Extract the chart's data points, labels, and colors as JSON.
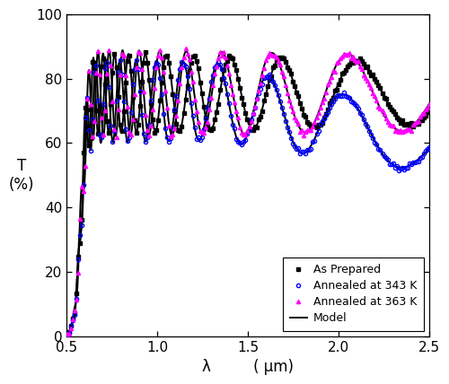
{
  "xlabel_lambda": "λ",
  "xlabel_unit": "( μm)",
  "ylabel_T": "T",
  "ylabel_pct": "(%)",
  "xlim": [
    0.5,
    2.5
  ],
  "ylim": [
    0,
    100
  ],
  "xticks": [
    0.5,
    1.0,
    1.5,
    2.0,
    2.5
  ],
  "yticks": [
    0,
    20,
    40,
    60,
    80,
    100
  ],
  "legend_labels": [
    "As Prepared",
    "Annealed at 343 K",
    "Annealed at 363 K",
    "Model"
  ],
  "color_ap": "black",
  "color_343": "blue",
  "color_363": "magenta",
  "color_model": "black",
  "bg_color": "white"
}
